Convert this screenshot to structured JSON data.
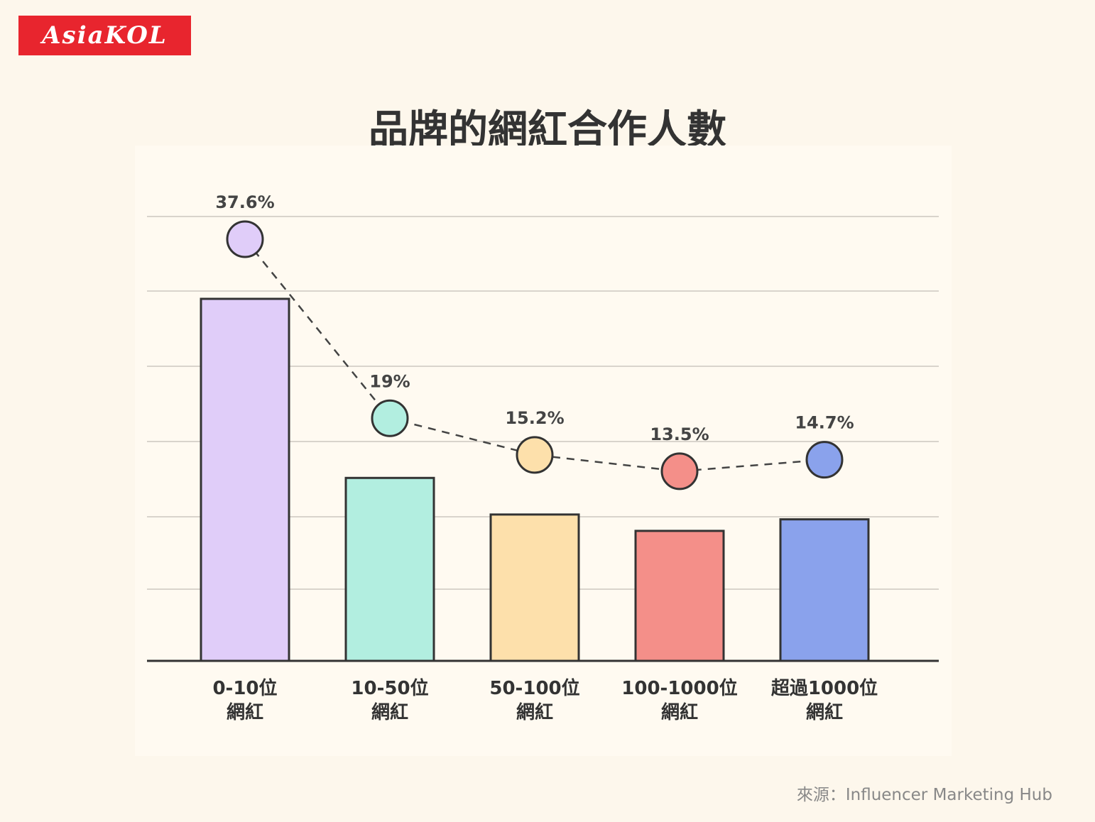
{
  "logo": {
    "text": "AsiaKOL",
    "color": "#e8252e"
  },
  "source": "來源：Influencer Marketing Hub",
  "chart_data": {
    "type": "bar",
    "title": "品牌的網紅合作人數",
    "xlabel": "",
    "ylabel": "",
    "ylim": [
      0,
      40
    ],
    "grid": true,
    "categories": [
      [
        "0-10位",
        "網紅"
      ],
      [
        "10-50位",
        "網紅"
      ],
      [
        "50-100位",
        "網紅"
      ],
      [
        "100-1000位",
        "網紅"
      ],
      [
        "超過1000位",
        "網紅"
      ]
    ],
    "values": [
      37.6,
      19,
      15.2,
      13.5,
      14.7
    ],
    "value_labels": [
      "37.6%",
      "19%",
      "15.2%",
      "13.5%",
      "14.7%"
    ],
    "colors": [
      "#e0cdf9",
      "#b2eee0",
      "#fde0ab",
      "#f48f89",
      "#8aa2ec"
    ],
    "overlay": {
      "type": "line",
      "style": "dashed",
      "markers": "circle"
    }
  }
}
